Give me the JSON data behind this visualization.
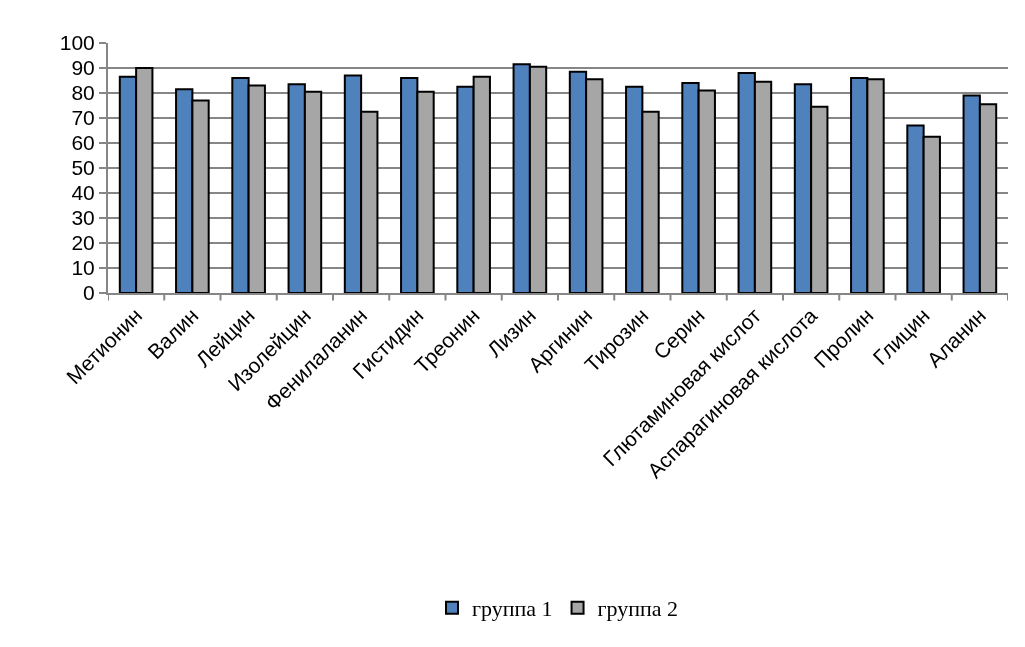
{
  "chart_data": {
    "type": "bar",
    "categories": [
      "Метионин",
      "Валин",
      "Лейцин",
      "Изолейцин",
      "Фенилаланин",
      "Гистидин",
      "Треонин",
      "Лизин",
      "Аргинин",
      "Тирозин",
      "Серин",
      "Глютаминовая кислот",
      "Аспарагиновая кислота",
      "Пролин",
      "Глицин",
      "Аланин"
    ],
    "series": [
      {
        "name": "группа 1",
        "color": "#4f81bd",
        "values": [
          86.5,
          81.5,
          86,
          83.5,
          87,
          86,
          82.5,
          91.5,
          88.5,
          82.5,
          84,
          88,
          83.5,
          86,
          67,
          79
        ]
      },
      {
        "name": "группа 2",
        "color": "#a6a6a6",
        "values": [
          90,
          77,
          83,
          80.5,
          72.5,
          80.5,
          86.5,
          90.5,
          85.5,
          72.5,
          81,
          84.5,
          74.5,
          85.5,
          62.5,
          75.5
        ]
      }
    ],
    "ylim": [
      0,
      100
    ],
    "yticks": [
      0,
      10,
      20,
      30,
      40,
      50,
      60,
      70,
      80,
      90,
      100
    ],
    "grid": "y",
    "legend": "bottom"
  }
}
